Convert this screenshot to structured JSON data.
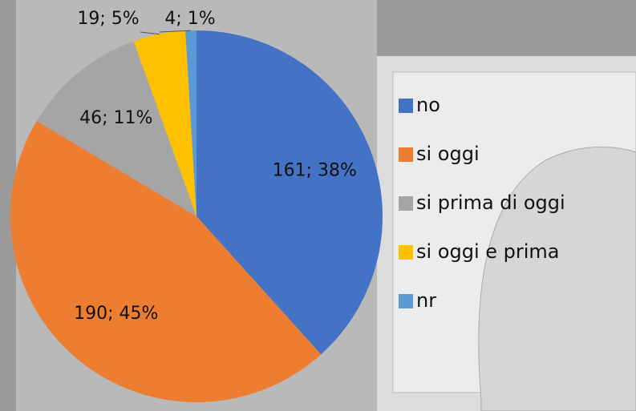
{
  "chart_data": {
    "type": "pie",
    "categories": [
      "no",
      "si oggi",
      "si prima di oggi",
      "si oggi e prima",
      "nr"
    ],
    "values": [
      161,
      190,
      46,
      19,
      4
    ],
    "value_labels": [
      "161; 38%",
      "190; 45%",
      "46; 11%",
      "19; 5%",
      "4; 1%"
    ],
    "colors": [
      "#4472c4",
      "#ed7d31",
      "#a5a5a5",
      "#ffc000",
      "#5b9bd5"
    ],
    "legend": "right"
  }
}
